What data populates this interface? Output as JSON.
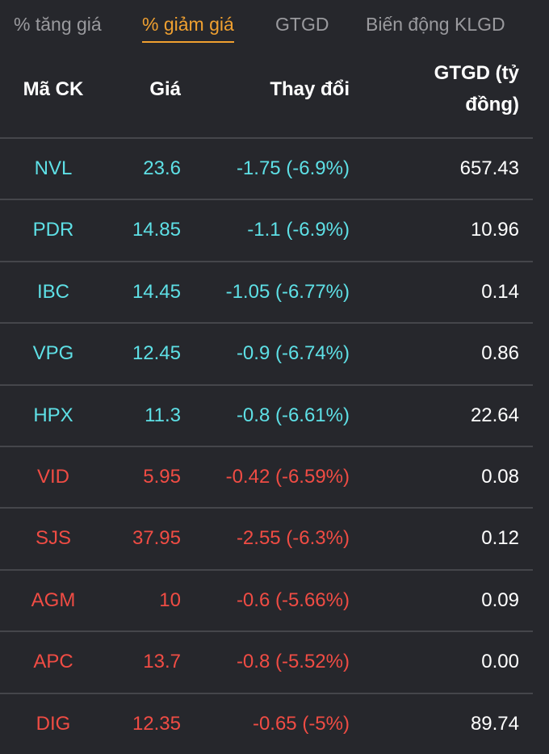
{
  "tabs": [
    {
      "label": "% tăng giá",
      "active": false
    },
    {
      "label": "% giảm giá",
      "active": true
    },
    {
      "label": "GTGD",
      "active": false
    },
    {
      "label": "Biến động KLGD",
      "active": false
    }
  ],
  "columns": {
    "code": "Mã CK",
    "price": "Giá",
    "change": "Thay đổi",
    "value_line1": "GTGD (tỷ",
    "value_line2": "đồng)"
  },
  "colors": {
    "up": "#5ee0e6",
    "down": "#f04c44",
    "accent": "#f0a030"
  },
  "rows": [
    {
      "code": "NVL",
      "price": "23.6",
      "change": "-1.75 (-6.9%)",
      "value": "657.43",
      "color": "#5ee0e6"
    },
    {
      "code": "PDR",
      "price": "14.85",
      "change": "-1.1 (-6.9%)",
      "value": "10.96",
      "color": "#5ee0e6"
    },
    {
      "code": "IBC",
      "price": "14.45",
      "change": "-1.05 (-6.77%)",
      "value": "0.14",
      "color": "#5ee0e6"
    },
    {
      "code": "VPG",
      "price": "12.45",
      "change": "-0.9 (-6.74%)",
      "value": "0.86",
      "color": "#5ee0e6"
    },
    {
      "code": "HPX",
      "price": "11.3",
      "change": "-0.8 (-6.61%)",
      "value": "22.64",
      "color": "#5ee0e6"
    },
    {
      "code": "VID",
      "price": "5.95",
      "change": "-0.42 (-6.59%)",
      "value": "0.08",
      "color": "#f04c44"
    },
    {
      "code": "SJS",
      "price": "37.95",
      "change": "-2.55 (-6.3%)",
      "value": "0.12",
      "color": "#f04c44"
    },
    {
      "code": "AGM",
      "price": "10",
      "change": "-0.6 (-5.66%)",
      "value": "0.09",
      "color": "#f04c44"
    },
    {
      "code": "APC",
      "price": "13.7",
      "change": "-0.8 (-5.52%)",
      "value": "0.00",
      "color": "#f04c44"
    },
    {
      "code": "DIG",
      "price": "12.35",
      "change": "-0.65 (-5%)",
      "value": "89.74",
      "color": "#f04c44"
    }
  ]
}
